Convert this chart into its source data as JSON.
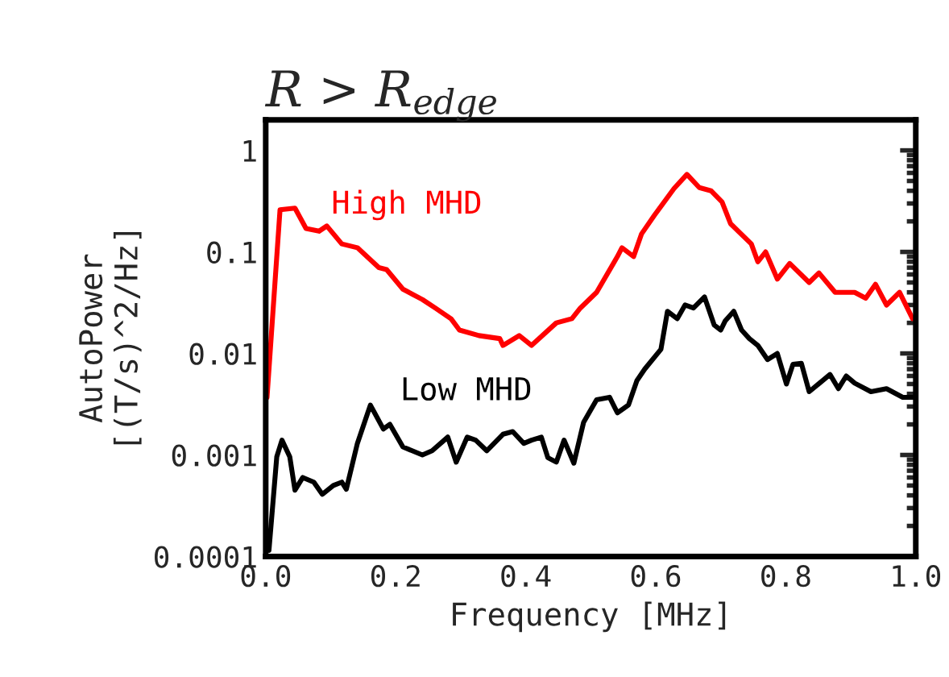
{
  "chart_data": {
    "type": "line",
    "title": "R > R$_{edge}$",
    "xlabel": "Frequency [MHz]",
    "ylabel": "AutoPower\n[(T/s)^2/Hz]",
    "log": "y",
    "grid": false,
    "marker": "none",
    "line_style": "solid",
    "xlim": [
      0,
      1
    ],
    "xticks": [
      {
        "value": 0,
        "label": "0.0"
      },
      {
        "value": 0.2,
        "label": "0.2"
      },
      {
        "value": 0.4,
        "label": "0.4"
      },
      {
        "value": 0.6,
        "label": "0.6"
      },
      {
        "value": 0.8,
        "label": "0.8"
      },
      {
        "value": 1,
        "label": "1.0"
      }
    ],
    "ylim": [
      0.0001,
      2
    ],
    "yticks": [
      0.0001,
      0.001,
      0.01,
      0.1,
      1
    ],
    "series": [
      {
        "name": "High MHD",
        "color": "#ff0000",
        "x": [
          0.002,
          0.022,
          0.045,
          0.062,
          0.082,
          0.094,
          0.117,
          0.141,
          0.174,
          0.186,
          0.211,
          0.241,
          0.261,
          0.285,
          0.298,
          0.328,
          0.36,
          0.365,
          0.39,
          0.409,
          0.447,
          0.471,
          0.484,
          0.509,
          0.541,
          0.548,
          0.566,
          0.578,
          0.598,
          0.628,
          0.648,
          0.667,
          0.685,
          0.702,
          0.715,
          0.747,
          0.757,
          0.769,
          0.787,
          0.806,
          0.836,
          0.851,
          0.876,
          0.906,
          0.923,
          0.938,
          0.955,
          0.975,
          0.995
        ],
        "values": [
          0.0037,
          0.26,
          0.27,
          0.17,
          0.16,
          0.18,
          0.12,
          0.11,
          0.07,
          0.067,
          0.043,
          0.034,
          0.028,
          0.022,
          0.017,
          0.015,
          0.014,
          0.012,
          0.015,
          0.012,
          0.02,
          0.022,
          0.028,
          0.04,
          0.09,
          0.11,
          0.09,
          0.15,
          0.23,
          0.42,
          0.58,
          0.43,
          0.4,
          0.31,
          0.19,
          0.12,
          0.08,
          0.1,
          0.054,
          0.077,
          0.05,
          0.062,
          0.04,
          0.04,
          0.035,
          0.048,
          0.03,
          0.04,
          0.022
        ]
      },
      {
        "name": "Low MHD",
        "color": "#000000",
        "x": [
          0.005,
          0.017,
          0.025,
          0.037,
          0.045,
          0.057,
          0.074,
          0.087,
          0.104,
          0.117,
          0.124,
          0.141,
          0.161,
          0.181,
          0.191,
          0.211,
          0.241,
          0.256,
          0.28,
          0.293,
          0.31,
          0.323,
          0.34,
          0.365,
          0.38,
          0.397,
          0.409,
          0.424,
          0.434,
          0.447,
          0.459,
          0.474,
          0.489,
          0.509,
          0.529,
          0.541,
          0.558,
          0.571,
          0.583,
          0.608,
          0.618,
          0.633,
          0.645,
          0.658,
          0.675,
          0.69,
          0.7,
          0.707,
          0.72,
          0.732,
          0.744,
          0.757,
          0.772,
          0.787,
          0.801,
          0.811,
          0.824,
          0.836,
          0.868,
          0.881,
          0.893,
          0.906,
          0.931,
          0.955,
          0.98,
          1.0
        ],
        "values": [
          0.000115,
          0.00096,
          0.0014,
          0.00096,
          0.00045,
          0.0006,
          0.00054,
          0.00041,
          0.0005,
          0.00054,
          0.00046,
          0.0013,
          0.0031,
          0.0018,
          0.002,
          0.0012,
          0.001,
          0.0011,
          0.0015,
          0.00085,
          0.0015,
          0.0014,
          0.0011,
          0.0016,
          0.0017,
          0.0013,
          0.0014,
          0.0015,
          0.00094,
          0.00085,
          0.0014,
          0.00083,
          0.0021,
          0.0035,
          0.0037,
          0.0026,
          0.0031,
          0.0054,
          0.007,
          0.011,
          0.026,
          0.022,
          0.03,
          0.028,
          0.036,
          0.019,
          0.017,
          0.021,
          0.026,
          0.017,
          0.014,
          0.012,
          0.0087,
          0.01,
          0.005,
          0.0078,
          0.008,
          0.0042,
          0.0062,
          0.0045,
          0.006,
          0.0051,
          0.0042,
          0.0045,
          0.0037,
          0.0037
        ]
      }
    ]
  }
}
